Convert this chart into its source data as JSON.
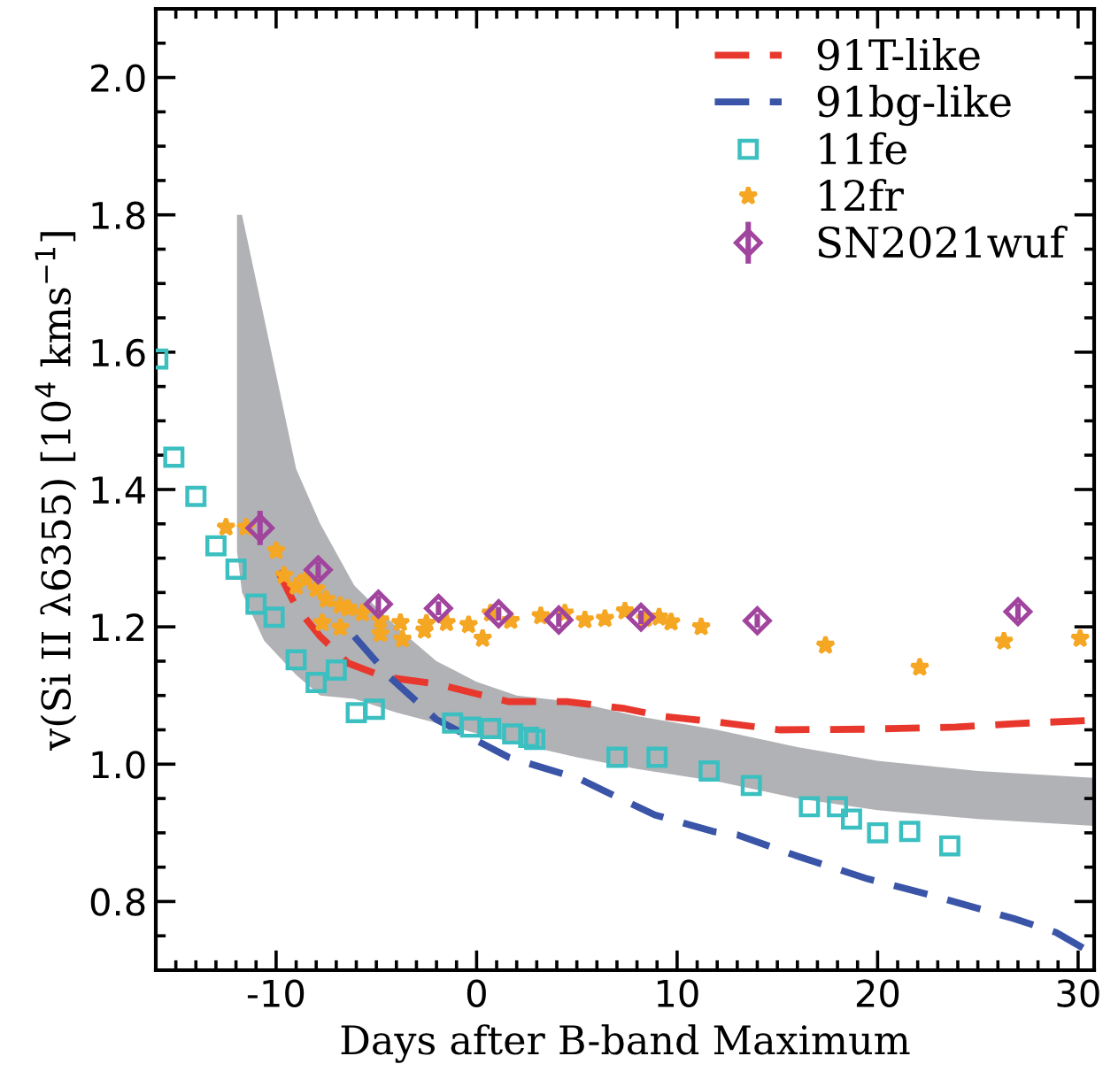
{
  "chart_data": {
    "type": "scatter",
    "xlabel": "Days after B-band Maximum",
    "ylabel": "v(Si II λ6355) [10$^{4}$ kms$^{−1}$]",
    "xlim": [
      -16,
      30.8
    ],
    "ylim": [
      0.7,
      2.1
    ],
    "xticks": [
      -10,
      0,
      10,
      20,
      30
    ],
    "yticks": [
      0.8,
      {
        "value": 1.0,
        "label": "1.0"
      },
      1.2,
      1.4,
      1.6,
      1.8,
      {
        "value": 2.0,
        "label": "2.0"
      }
    ],
    "grid": false,
    "legend": "top right",
    "series": [
      {
        "type": "area",
        "color": "#b1b2b5",
        "x": [
          -11.95,
          -11.7,
          -10.6,
          -9.0,
          -7.8,
          -6.1,
          -4.0,
          -2.0,
          0,
          2,
          5,
          8,
          12,
          16,
          20,
          25,
          30.8
        ],
        "lower": [
          1.31,
          1.25,
          1.18,
          1.13,
          1.1,
          1.095,
          1.075,
          1.06,
          1.045,
          1.03,
          1.01,
          0.993,
          0.975,
          0.95,
          0.933,
          0.92,
          0.91
        ],
        "values": [
          null,
          null,
          null,
          null,
          null,
          null,
          null,
          null,
          null,
          null,
          null,
          null,
          null,
          null,
          null,
          null,
          null
        ],
        "upper": [
          1.8,
          1.8,
          1.65,
          1.43,
          1.35,
          1.26,
          1.2,
          1.15,
          1.12,
          1.1,
          1.09,
          1.07,
          1.05,
          1.025,
          1.005,
          0.99,
          0.98
        ]
      },
      {
        "type": "line",
        "name": "91T-like",
        "color": "#e8382d",
        "line_style": "dashed",
        "marker": "none",
        "x": [
          -9.9,
          -9.0,
          -7.8,
          -6.4,
          -4.6,
          -2.0,
          1.6,
          4.5,
          6.3,
          7.4,
          9.2,
          12.1,
          15.1,
          19.5,
          23.9,
          26.8,
          30.8
        ],
        "values": [
          1.281,
          1.229,
          1.186,
          1.147,
          1.127,
          1.117,
          1.091,
          1.091,
          1.085,
          1.081,
          1.07,
          1.061,
          1.05,
          1.051,
          1.054,
          1.059,
          1.064
        ]
      },
      {
        "type": "line",
        "name": "91bg-like",
        "color": "#3a55a8",
        "line_style": "dashed",
        "marker": "none",
        "x": [
          -6.1,
          -4.3,
          -2.0,
          1.6,
          5.1,
          6.3,
          8.9,
          11.8,
          13.0,
          15.9,
          19.5,
          22.7,
          26.8,
          28.9,
          30.8
        ],
        "values": [
          1.186,
          1.126,
          1.065,
          1.01,
          0.979,
          0.962,
          0.926,
          0.902,
          0.897,
          0.867,
          0.833,
          0.809,
          0.775,
          0.755,
          0.723
        ]
      },
      {
        "name": "11fe",
        "color": "#3bbfc0",
        "marker": "square",
        "x": [
          -15.9,
          -15.1,
          -14.0,
          -13.0,
          -12.0,
          -11.0,
          -10.1,
          -9.0,
          -8.0,
          -7.0,
          -6.0,
          -5.1,
          -1.2,
          -0.3,
          0.7,
          1.8,
          2.6,
          2.9,
          7.0,
          9.0,
          11.6,
          13.7,
          16.6,
          18.0,
          18.7,
          20.0,
          21.6,
          23.6
        ],
        "values": [
          1.59,
          1.447,
          1.39,
          1.318,
          1.284,
          1.233,
          1.214,
          1.152,
          1.119,
          1.137,
          1.075,
          1.08,
          1.06,
          1.054,
          1.052,
          1.044,
          1.039,
          1.036,
          1.01,
          1.01,
          0.99,
          0.969,
          0.938,
          0.938,
          0.92,
          0.9,
          0.902,
          0.881
        ]
      },
      {
        "name": "12fr",
        "color": "#f5a623",
        "marker": "star",
        "x": [
          -12.5,
          -11.5,
          -10.0,
          -9.6,
          -9.0,
          -8.5,
          -8.0,
          -7.5,
          -6.8,
          -6.4,
          -5.7,
          -7.7,
          -6.8,
          -4.8,
          -4.8,
          -3.8,
          -3.7,
          -2.5,
          -2.6,
          -1.5,
          -0.4,
          0.3,
          0.7,
          1.7,
          3.2,
          4.4,
          5.4,
          6.4,
          7.4,
          8.4,
          9.1,
          9.7,
          11.2,
          17.4,
          22.1,
          26.3,
          30.1
        ],
        "values": [
          1.345,
          1.345,
          1.311,
          1.275,
          1.259,
          1.27,
          1.255,
          1.24,
          1.231,
          1.227,
          1.22,
          1.206,
          1.199,
          1.21,
          1.19,
          1.206,
          1.182,
          1.205,
          1.195,
          1.206,
          1.203,
          1.183,
          1.22,
          1.209,
          1.216,
          1.22,
          1.21,
          1.212,
          1.223,
          1.212,
          1.214,
          1.207,
          1.2,
          1.173,
          1.141,
          1.179,
          1.183
        ]
      },
      {
        "name": "SN2021wuf",
        "color": "#a0449e",
        "marker": "diamond",
        "x": [
          -10.8,
          -7.9,
          -4.9,
          -1.9,
          1.1,
          4.1,
          8.2,
          14.0,
          27.0
        ],
        "values": [
          1.344,
          1.283,
          1.233,
          1.227,
          1.219,
          1.21,
          1.214,
          1.209,
          1.222
        ],
        "errors": [
          0.025,
          0.012,
          0.012,
          0.01,
          0.01,
          0.01,
          0.01,
          0.01,
          0.012
        ]
      }
    ]
  }
}
